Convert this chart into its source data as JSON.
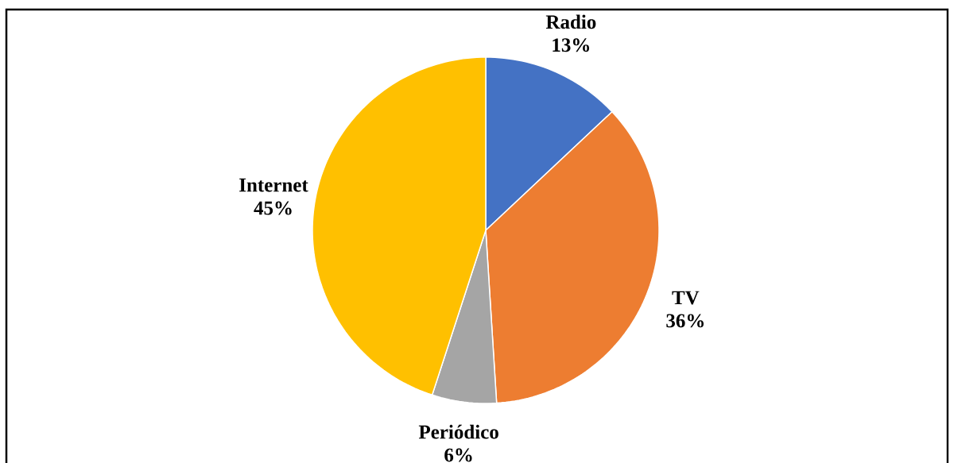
{
  "chart_data": {
    "type": "pie",
    "categories": [
      "Radio",
      "TV",
      "Periódico",
      "Internet"
    ],
    "values": [
      13,
      36,
      6,
      45
    ],
    "value_labels": [
      "13%",
      "36%",
      "6%",
      "45%"
    ],
    "colors": [
      "#4472c4",
      "#ed7d31",
      "#a5a5a5",
      "#ffc000"
    ]
  }
}
